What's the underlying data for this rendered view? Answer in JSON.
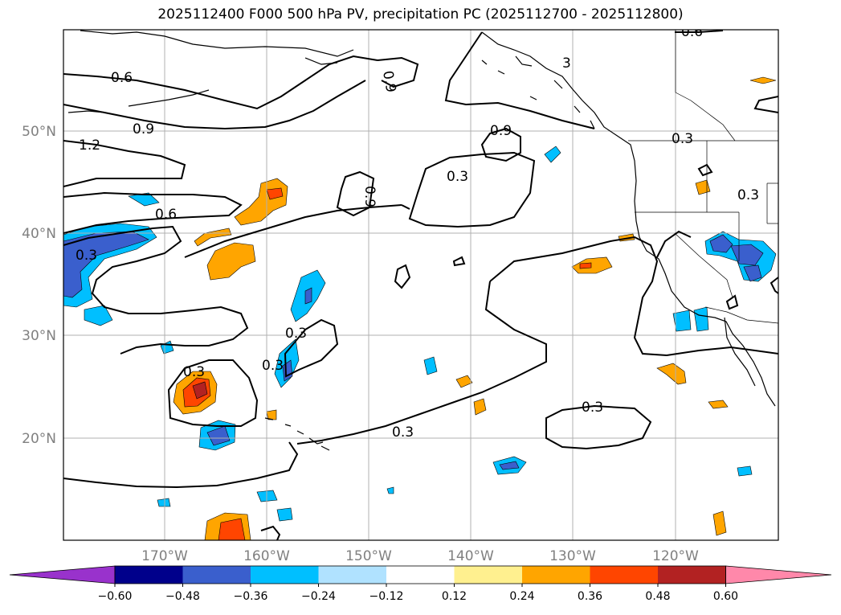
{
  "title": "2025112400 F000 500 hPa PV, precipitation PC (2025112700 - 2025112800)",
  "lat_labels": [
    "50°N",
    "40°N",
    "30°N",
    "20°N"
  ],
  "lon_labels": [
    "170°W",
    "160°W",
    "150°W",
    "140°W",
    "130°W",
    "120°W"
  ],
  "colorbar": {
    "colors": [
      "#9932cc",
      "#00008b",
      "#3a5fcd",
      "#00bfff",
      "#b0e2ff",
      "#ffffff",
      "#fff08f",
      "#ffa500",
      "#ff4500",
      "#b22222",
      "#ff88aa"
    ],
    "tick_labels": [
      "−0.60",
      "−0.48",
      "−0.36",
      "−0.24",
      "−0.12",
      "0.12",
      "0.24",
      "0.36",
      "0.48",
      "0.60"
    ]
  },
  "contour_labels": [
    "0.6",
    "0.9",
    "1.2",
    "0.6",
    "0.3",
    "0.9",
    "0.9",
    "0.3",
    "0.9",
    "0.3",
    "0.3",
    "0.3",
    "0.3",
    "0.3",
    "0.3",
    "0.3",
    "3",
    "0.6"
  ]
}
